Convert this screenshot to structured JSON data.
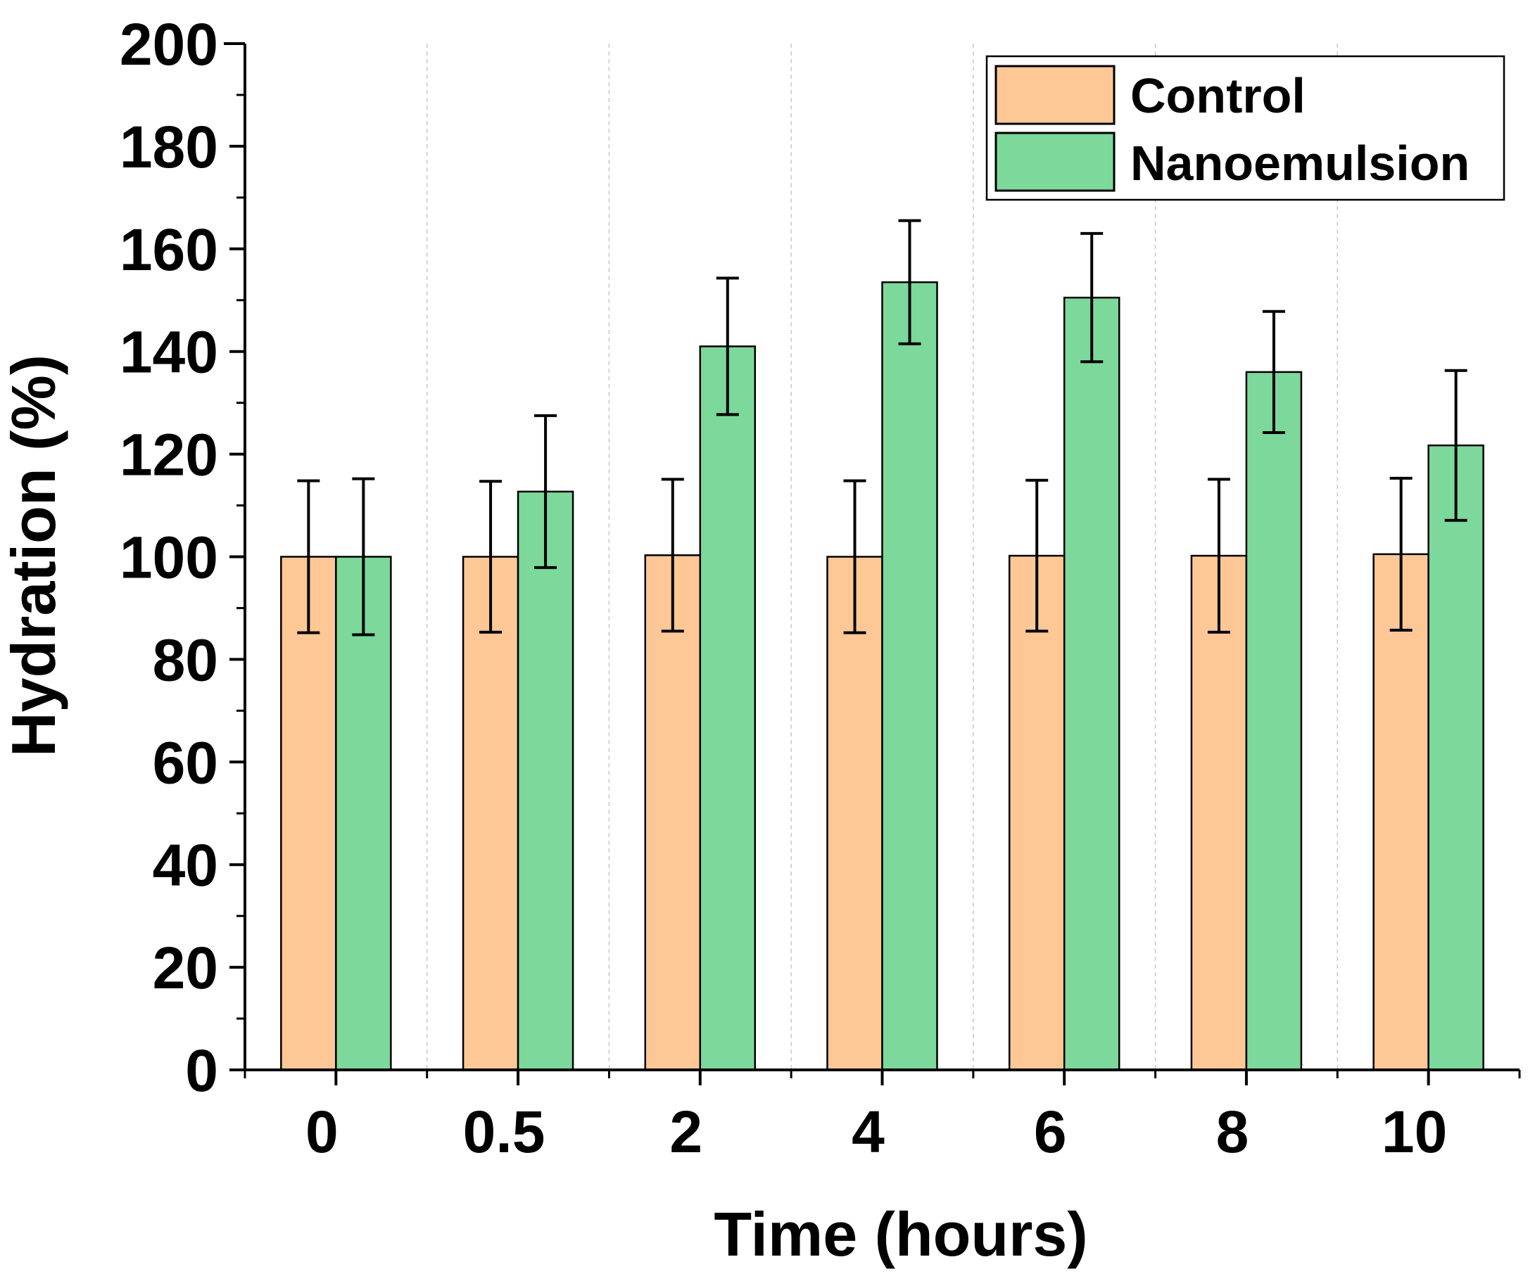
{
  "chart_data": {
    "type": "bar",
    "title": "",
    "xlabel": "Time (hours)",
    "ylabel": "Hydration (%)",
    "categories": [
      "0",
      "0.5",
      "2",
      "4",
      "6",
      "8",
      "10"
    ],
    "ylim": [
      0,
      200
    ],
    "yticks": [
      "0",
      "20",
      "40",
      "60",
      "80",
      "100",
      "120",
      "140",
      "160",
      "180",
      "200"
    ],
    "grid": "vertical dashed separators between categories",
    "legend_position": "top-right",
    "series": [
      {
        "name": "Control",
        "color": "#FDC896",
        "values": [
          100,
          100,
          100.3,
          100,
          100.2,
          100.2,
          100.5
        ],
        "errors": [
          14.8,
          14.7,
          14.8,
          14.8,
          14.7,
          14.9,
          14.8
        ]
      },
      {
        "name": "Nanoemulsion",
        "color": "#7DD89B",
        "values": [
          100,
          112.7,
          141,
          153.5,
          150.5,
          136,
          121.7
        ],
        "errors": [
          15.2,
          14.8,
          13.3,
          12,
          12.5,
          11.8,
          14.6
        ]
      }
    ]
  }
}
